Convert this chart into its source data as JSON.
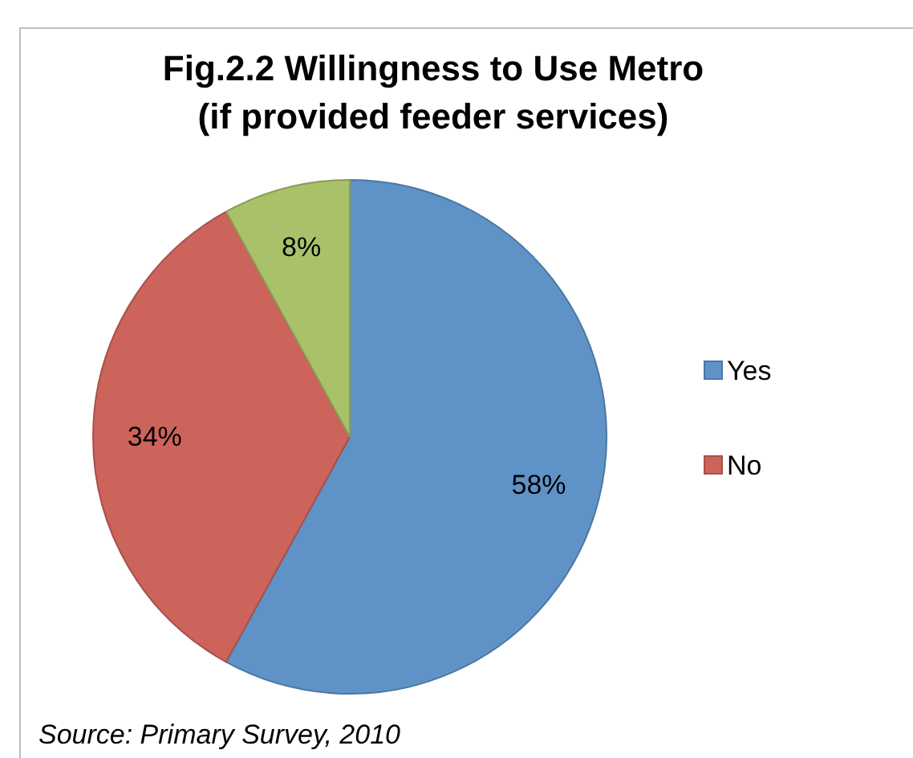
{
  "chart_data": {
    "type": "pie",
    "title": "Fig.2.2 Willingness to Use Metro\n(if provided feeder services)",
    "categories": [
      "Yes",
      "No",
      null
    ],
    "values": [
      58,
      34,
      8
    ],
    "colors": [
      "#5f93c8",
      "#cc645c",
      "#a9c26a"
    ],
    "value_labels": [
      "58%",
      "34%",
      "8%"
    ],
    "legend": "right",
    "annotations": [
      "Source: Primary Survey, 2010"
    ]
  }
}
